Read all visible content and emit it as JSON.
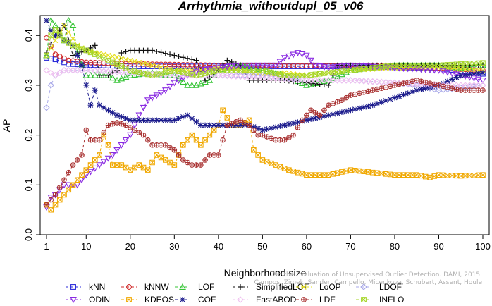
{
  "chart_data": {
    "type": "line",
    "title": "Arrhythmia_withoutdupl_05_v06",
    "xlabel": "Neighborhood size",
    "ylabel": "AP",
    "xlim": [
      1,
      100
    ],
    "ylim": [
      0,
      0.44
    ],
    "x_ticks": [
      1,
      10,
      20,
      30,
      40,
      50,
      60,
      70,
      80,
      90,
      100
    ],
    "y_ticks": [
      0.0,
      0.1,
      0.2,
      0.3,
      0.4
    ],
    "y_tick_labels": [
      "0.0",
      "0.1",
      "0.2",
      "0.3",
      "0.4"
    ],
    "grid": false,
    "legend_position": "bottom",
    "watermark": [
      "On the Evaluation of Unsupervised Outlier Detection. DAMI, 2015.",
      "Campos, Zimek, Sander, Campello, Micenkova, Schubert, Assent, Houle"
    ],
    "series": [
      {
        "name": "kNN",
        "color": "#2b2bd8",
        "marker": "square",
        "knots": [
          [
            1,
            0.355
          ],
          [
            3,
            0.352
          ],
          [
            6,
            0.343
          ],
          [
            10,
            0.341
          ],
          [
            20,
            0.338
          ],
          [
            40,
            0.338
          ],
          [
            60,
            0.338
          ],
          [
            70,
            0.338
          ],
          [
            80,
            0.336
          ],
          [
            90,
            0.334
          ],
          [
            100,
            0.323
          ]
        ]
      },
      {
        "name": "kNNW",
        "color": "#d02a2a",
        "marker": "circle",
        "knots": [
          [
            1,
            0.395
          ],
          [
            3,
            0.362
          ],
          [
            6,
            0.35
          ],
          [
            10,
            0.346
          ],
          [
            20,
            0.343
          ],
          [
            40,
            0.34
          ],
          [
            60,
            0.339
          ],
          [
            70,
            0.34
          ],
          [
            80,
            0.338
          ],
          [
            90,
            0.335
          ],
          [
            100,
            0.33
          ]
        ]
      },
      {
        "name": "LOF",
        "color": "#35c435",
        "marker": "triangle-up",
        "knots": [
          [
            1,
            0.36
          ],
          [
            2,
            0.43
          ],
          [
            3,
            0.42
          ],
          [
            5,
            0.39
          ],
          [
            6,
            0.43
          ],
          [
            7,
            0.42
          ],
          [
            8,
            0.365
          ],
          [
            10,
            0.32
          ],
          [
            12,
            0.32
          ],
          [
            15,
            0.32
          ],
          [
            17,
            0.31
          ],
          [
            20,
            0.32
          ],
          [
            25,
            0.325
          ],
          [
            28,
            0.32
          ],
          [
            30,
            0.32
          ],
          [
            33,
            0.3
          ],
          [
            35,
            0.3
          ],
          [
            38,
            0.31
          ],
          [
            40,
            0.33
          ],
          [
            45,
            0.34
          ],
          [
            50,
            0.33
          ],
          [
            55,
            0.32
          ],
          [
            60,
            0.3
          ],
          [
            65,
            0.31
          ],
          [
            70,
            0.33
          ],
          [
            75,
            0.335
          ],
          [
            80,
            0.34
          ],
          [
            85,
            0.34
          ],
          [
            90,
            0.34
          ],
          [
            95,
            0.335
          ],
          [
            100,
            0.34
          ]
        ]
      },
      {
        "name": "SimplifiedLOF",
        "color": "#111111",
        "marker": "plus",
        "knots": [
          [
            1,
            0.365
          ],
          [
            3,
            0.4
          ],
          [
            5,
            0.42
          ],
          [
            7,
            0.36
          ],
          [
            10,
            0.37
          ],
          [
            12,
            0.38
          ],
          [
            13,
            0.32
          ],
          [
            15,
            0.32
          ],
          [
            17,
            0.33
          ],
          [
            18,
            0.365
          ],
          [
            20,
            0.37
          ],
          [
            25,
            0.37
          ],
          [
            30,
            0.36
          ],
          [
            35,
            0.35
          ],
          [
            37,
            0.31
          ],
          [
            40,
            0.33
          ],
          [
            42,
            0.35
          ],
          [
            45,
            0.34
          ],
          [
            47,
            0.31
          ],
          [
            50,
            0.31
          ],
          [
            55,
            0.31
          ],
          [
            60,
            0.305
          ],
          [
            65,
            0.3
          ],
          [
            67,
            0.34
          ],
          [
            70,
            0.34
          ],
          [
            80,
            0.34
          ],
          [
            90,
            0.34
          ],
          [
            100,
            0.34
          ]
        ]
      },
      {
        "name": "LoOP",
        "color": "#e6e01e",
        "marker": "x",
        "knots": [
          [
            1,
            0.36
          ],
          [
            3,
            0.39
          ],
          [
            5,
            0.42
          ],
          [
            8,
            0.38
          ],
          [
            10,
            0.37
          ],
          [
            15,
            0.36
          ],
          [
            20,
            0.35
          ],
          [
            25,
            0.34
          ],
          [
            30,
            0.33
          ],
          [
            35,
            0.33
          ],
          [
            40,
            0.335
          ],
          [
            45,
            0.33
          ],
          [
            50,
            0.32
          ],
          [
            55,
            0.325
          ],
          [
            60,
            0.32
          ],
          [
            70,
            0.33
          ],
          [
            80,
            0.335
          ],
          [
            90,
            0.335
          ],
          [
            100,
            0.33
          ]
        ]
      },
      {
        "name": "LDOF",
        "color": "#a8a8e8",
        "marker": "diamond",
        "knots": [
          [
            1,
            0.255
          ],
          [
            2,
            0.3
          ],
          [
            3,
            0.32
          ],
          [
            5,
            0.33
          ],
          [
            10,
            0.33
          ],
          [
            20,
            0.325
          ],
          [
            30,
            0.32
          ],
          [
            40,
            0.32
          ],
          [
            50,
            0.32
          ],
          [
            60,
            0.31
          ],
          [
            70,
            0.31
          ],
          [
            80,
            0.305
          ],
          [
            85,
            0.3
          ],
          [
            90,
            0.29
          ],
          [
            95,
            0.295
          ],
          [
            100,
            0.3
          ]
        ]
      },
      {
        "name": "ODIN",
        "color": "#8a2be2",
        "marker": "triangle-down",
        "knots": [
          [
            1,
            0.055
          ],
          [
            2,
            0.075
          ],
          [
            3,
            0.08
          ],
          [
            5,
            0.1
          ],
          [
            8,
            0.1
          ],
          [
            10,
            0.12
          ],
          [
            13,
            0.14
          ],
          [
            16,
            0.16
          ],
          [
            18,
            0.18
          ],
          [
            20,
            0.2
          ],
          [
            22,
            0.24
          ],
          [
            24,
            0.27
          ],
          [
            26,
            0.28
          ],
          [
            28,
            0.29
          ],
          [
            30,
            0.305
          ],
          [
            33,
            0.32
          ],
          [
            36,
            0.33
          ],
          [
            40,
            0.335
          ],
          [
            45,
            0.34
          ],
          [
            50,
            0.34
          ],
          [
            53,
            0.34
          ],
          [
            55,
            0.355
          ],
          [
            58,
            0.365
          ],
          [
            60,
            0.36
          ],
          [
            62,
            0.34
          ],
          [
            65,
            0.335
          ],
          [
            70,
            0.34
          ],
          [
            80,
            0.335
          ],
          [
            90,
            0.33
          ],
          [
            100,
            0.31
          ]
        ]
      },
      {
        "name": "KDEOS",
        "color": "#f0a800",
        "marker": "square-x",
        "knots": [
          [
            1,
            0.06
          ],
          [
            2,
            0.05
          ],
          [
            3,
            0.06
          ],
          [
            5,
            0.08
          ],
          [
            7,
            0.1
          ],
          [
            9,
            0.12
          ],
          [
            11,
            0.14
          ],
          [
            13,
            0.16
          ],
          [
            14,
            0.2
          ],
          [
            15,
            0.18
          ],
          [
            16,
            0.14
          ],
          [
            18,
            0.14
          ],
          [
            20,
            0.13
          ],
          [
            22,
            0.14
          ],
          [
            24,
            0.13
          ],
          [
            26,
            0.16
          ],
          [
            28,
            0.15
          ],
          [
            30,
            0.14
          ],
          [
            32,
            0.18
          ],
          [
            34,
            0.2
          ],
          [
            36,
            0.18
          ],
          [
            38,
            0.2
          ],
          [
            40,
            0.22
          ],
          [
            41,
            0.25
          ],
          [
            43,
            0.22
          ],
          [
            45,
            0.22
          ],
          [
            47,
            0.23
          ],
          [
            48,
            0.17
          ],
          [
            50,
            0.15
          ],
          [
            53,
            0.14
          ],
          [
            56,
            0.13
          ],
          [
            60,
            0.12
          ],
          [
            65,
            0.12
          ],
          [
            70,
            0.13
          ],
          [
            75,
            0.125
          ],
          [
            80,
            0.12
          ],
          [
            85,
            0.12
          ],
          [
            88,
            0.115
          ],
          [
            90,
            0.12
          ],
          [
            95,
            0.118
          ],
          [
            100,
            0.12
          ]
        ]
      },
      {
        "name": "COF",
        "color": "#1a1a8c",
        "marker": "asterisk",
        "knots": [
          [
            1,
            0.43
          ],
          [
            2,
            0.41
          ],
          [
            3,
            0.4
          ],
          [
            4,
            0.4
          ],
          [
            5,
            0.39
          ],
          [
            7,
            0.38
          ],
          [
            9,
            0.34
          ],
          [
            10,
            0.3
          ],
          [
            11,
            0.26
          ],
          [
            12,
            0.29
          ],
          [
            13,
            0.26
          ],
          [
            15,
            0.25
          ],
          [
            17,
            0.24
          ],
          [
            20,
            0.23
          ],
          [
            22,
            0.23
          ],
          [
            25,
            0.23
          ],
          [
            28,
            0.23
          ],
          [
            30,
            0.23
          ],
          [
            33,
            0.24
          ],
          [
            36,
            0.22
          ],
          [
            38,
            0.22
          ],
          [
            40,
            0.22
          ],
          [
            43,
            0.22
          ],
          [
            45,
            0.22
          ],
          [
            47,
            0.22
          ],
          [
            50,
            0.21
          ],
          [
            55,
            0.22
          ],
          [
            60,
            0.23
          ],
          [
            65,
            0.24
          ],
          [
            70,
            0.25
          ],
          [
            75,
            0.26
          ],
          [
            80,
            0.275
          ],
          [
            85,
            0.29
          ],
          [
            90,
            0.3
          ],
          [
            95,
            0.32
          ],
          [
            100,
            0.325
          ]
        ]
      },
      {
        "name": "FastABOD",
        "color": "#f0c0f0",
        "marker": "diamond",
        "knots": [
          [
            1,
            0.33
          ],
          [
            3,
            0.32
          ],
          [
            5,
            0.33
          ],
          [
            10,
            0.33
          ],
          [
            20,
            0.325
          ],
          [
            30,
            0.32
          ],
          [
            40,
            0.32
          ],
          [
            50,
            0.315
          ],
          [
            60,
            0.31
          ],
          [
            70,
            0.31
          ],
          [
            80,
            0.305
          ],
          [
            90,
            0.3
          ],
          [
            100,
            0.3
          ]
        ]
      },
      {
        "name": "LDF",
        "color": "#a83030",
        "marker": "circle-plus",
        "knots": [
          [
            1,
            0.06
          ],
          [
            3,
            0.08
          ],
          [
            5,
            0.11
          ],
          [
            7,
            0.14
          ],
          [
            9,
            0.16
          ],
          [
            10,
            0.21
          ],
          [
            11,
            0.19
          ],
          [
            13,
            0.19
          ],
          [
            15,
            0.22
          ],
          [
            17,
            0.225
          ],
          [
            19,
            0.22
          ],
          [
            21,
            0.21
          ],
          [
            23,
            0.2
          ],
          [
            25,
            0.18
          ],
          [
            28,
            0.18
          ],
          [
            30,
            0.17
          ],
          [
            32,
            0.15
          ],
          [
            34,
            0.14
          ],
          [
            36,
            0.14
          ],
          [
            38,
            0.16
          ],
          [
            40,
            0.16
          ],
          [
            42,
            0.22
          ],
          [
            45,
            0.23
          ],
          [
            47,
            0.22
          ],
          [
            49,
            0.2
          ],
          [
            50,
            0.2
          ],
          [
            53,
            0.19
          ],
          [
            55,
            0.19
          ],
          [
            57,
            0.2
          ],
          [
            59,
            0.23
          ],
          [
            61,
            0.25
          ],
          [
            63,
            0.24
          ],
          [
            65,
            0.26
          ],
          [
            68,
            0.27
          ],
          [
            70,
            0.28
          ],
          [
            75,
            0.29
          ],
          [
            80,
            0.3
          ],
          [
            85,
            0.31
          ],
          [
            90,
            0.3
          ],
          [
            95,
            0.29
          ],
          [
            100,
            0.29
          ]
        ]
      },
      {
        "name": "INFLO",
        "color": "#a6d62a",
        "marker": "square-x",
        "knots": [
          [
            1,
            0.36
          ],
          [
            2,
            0.4
          ],
          [
            3,
            0.41
          ],
          [
            5,
            0.39
          ],
          [
            7,
            0.38
          ],
          [
            10,
            0.37
          ],
          [
            15,
            0.35
          ],
          [
            20,
            0.33
          ],
          [
            25,
            0.32
          ],
          [
            30,
            0.33
          ],
          [
            35,
            0.32
          ],
          [
            40,
            0.33
          ],
          [
            45,
            0.33
          ],
          [
            50,
            0.33
          ],
          [
            55,
            0.32
          ],
          [
            60,
            0.32
          ],
          [
            70,
            0.33
          ],
          [
            80,
            0.34
          ],
          [
            90,
            0.34
          ],
          [
            100,
            0.345
          ]
        ]
      }
    ]
  }
}
